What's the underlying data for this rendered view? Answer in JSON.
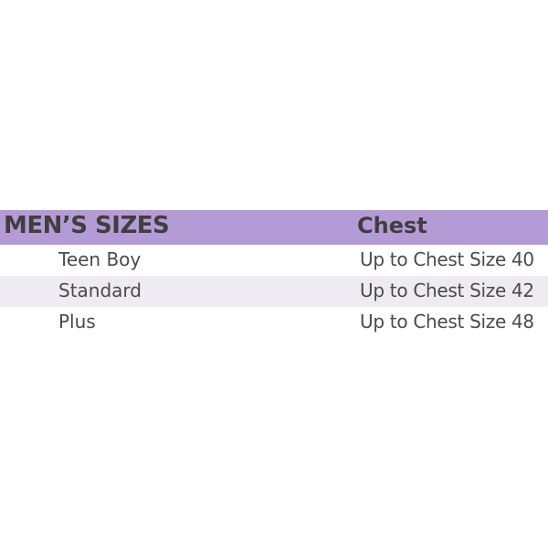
{
  "colors": {
    "header_bg": "#b59bd6",
    "alt_row_bg": "#eeebf3",
    "text": "#4a4a4a"
  },
  "table": {
    "headers": [
      "MEN’S SIZES",
      "Chest"
    ],
    "rows": [
      {
        "size": "Teen Boy",
        "chest": "Up to Chest Size 40"
      },
      {
        "size": "Standard",
        "chest": "Up to Chest Size 42"
      },
      {
        "size": "Plus",
        "chest": "Up to Chest Size 48"
      }
    ]
  }
}
